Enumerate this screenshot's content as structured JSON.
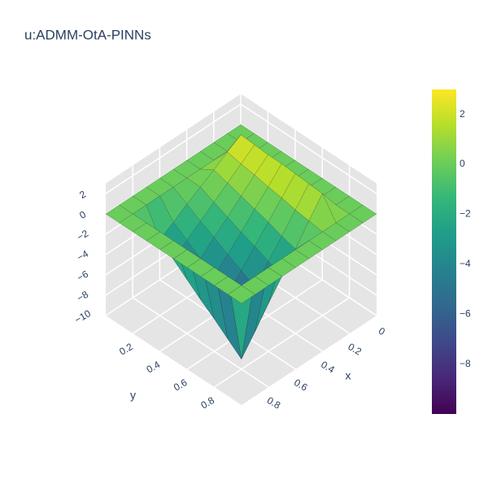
{
  "chart_data": {
    "type": "surface",
    "title": "u:ADMM-OtA-PINNs",
    "xlabel": "x",
    "ylabel": "y",
    "x": [
      0,
      0.1,
      0.2,
      0.3,
      0.4,
      0.5,
      0.6,
      0.7,
      0.8,
      0.9,
      1
    ],
    "y": [
      0,
      0.1,
      0.2,
      0.3,
      0.4,
      0.5,
      0.6,
      0.7,
      0.8,
      0.9,
      1
    ],
    "z": [
      [
        0,
        0,
        0,
        0,
        0,
        0,
        0,
        0,
        0,
        0,
        0
      ],
      [
        0,
        0,
        0,
        0,
        0,
        0,
        0,
        0,
        0,
        0,
        0
      ],
      [
        0,
        0,
        2.5,
        1.7,
        0.8,
        0,
        -0.8,
        -1.7,
        -2.5,
        0,
        0
      ],
      [
        0,
        0,
        2.4,
        1.4,
        0.4,
        -0.6,
        -1.6,
        -2.6,
        -3.6,
        0,
        0
      ],
      [
        0,
        0,
        2.3,
        1.2,
        0.0,
        -1.2,
        -2.3,
        -3.5,
        -4.7,
        0,
        0
      ],
      [
        0,
        0,
        2.3,
        0.9,
        -0.4,
        -1.8,
        -3.1,
        -4.4,
        -5.8,
        0,
        0
      ],
      [
        0,
        0,
        2.2,
        0.7,
        -0.8,
        -2.3,
        -3.8,
        -5.3,
        -6.8,
        0,
        0
      ],
      [
        0,
        0,
        2.1,
        0.4,
        -1.3,
        -2.9,
        -4.6,
        -6.2,
        -7.9,
        0,
        0
      ],
      [
        0,
        0,
        2.0,
        0.2,
        -1.7,
        -3.5,
        -5.3,
        -7.2,
        -9.0,
        0,
        0
      ],
      [
        0,
        0,
        0,
        0,
        0,
        0,
        0,
        0,
        0,
        0,
        0
      ],
      [
        0,
        0,
        0,
        0,
        0,
        0,
        0,
        0,
        0,
        0,
        0
      ]
    ],
    "colorscale": "Viridis",
    "clim": [
      -10,
      3
    ],
    "xlim": [
      0,
      1
    ],
    "ylim": [
      0,
      1
    ],
    "zlim": [
      -10,
      3
    ],
    "xticks": [
      0,
      0.2,
      0.4,
      0.6,
      0.8
    ],
    "yticks": [
      0.2,
      0.4,
      0.6,
      0.8
    ],
    "zticks": [
      2,
      0,
      {
        "value": -2,
        "label": "−2"
      },
      {
        "value": -4,
        "label": "−4"
      },
      {
        "value": -6,
        "label": "−6"
      },
      {
        "value": -8,
        "label": "−8"
      },
      {
        "value": -10,
        "label": "−10"
      }
    ],
    "colorbar_ticks": [
      2,
      0,
      {
        "value": -2,
        "label": "−2"
      },
      {
        "value": -4,
        "label": "−4"
      },
      {
        "value": -6,
        "label": "−6"
      },
      {
        "value": -8,
        "label": "−8"
      }
    ]
  }
}
